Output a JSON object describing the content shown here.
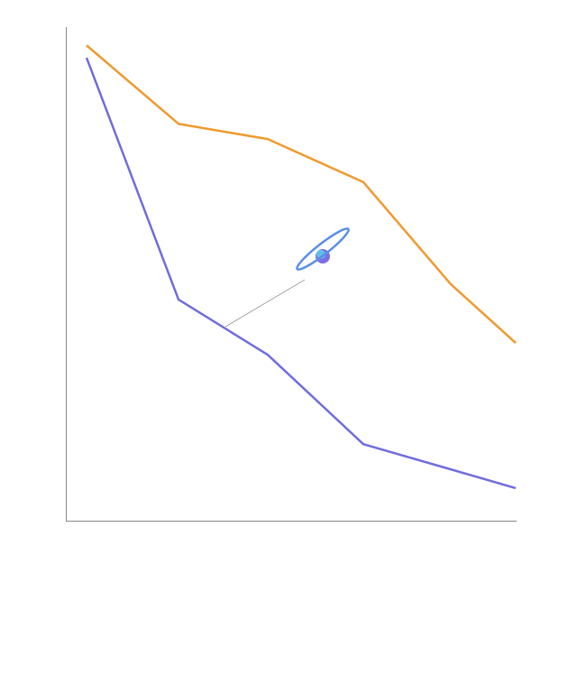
{
  "chart_data": {
    "type": "line",
    "xlim": [
      0,
      10
    ],
    "ylim": [
      0,
      100
    ],
    "series": [
      {
        "color": "#ee9a2e",
        "x": [
          0.46,
          2.5,
          4.48,
          6.6,
          8.54,
          9.98
        ],
        "values": [
          96.3,
          80.4,
          77.3,
          68.6,
          47.9,
          36.0
        ]
      },
      {
        "color": "#6f6ddc",
        "x": [
          0.46,
          2.5,
          4.48,
          6.6,
          8.54,
          9.98
        ],
        "values": [
          93.8,
          44.8,
          33.6,
          15.5,
          10.4,
          6.6
        ]
      }
    ]
  }
}
